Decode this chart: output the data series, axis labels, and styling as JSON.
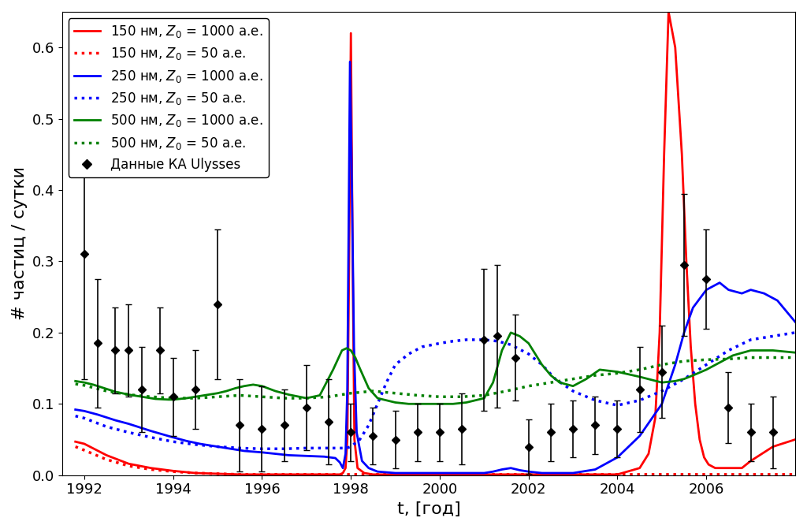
{
  "title": "",
  "xlabel": "t, [год]",
  "ylabel": "# частиц / сутки",
  "xlim": [
    1991.5,
    2008.0
  ],
  "ylim": [
    0.0,
    0.65
  ],
  "yticks": [
    0.0,
    0.1,
    0.2,
    0.3,
    0.4,
    0.5,
    0.6
  ],
  "xticks": [
    1992,
    1994,
    1996,
    1998,
    2000,
    2002,
    2004,
    2006
  ],
  "red_solid_x": [
    1991.8,
    1992.0,
    1992.5,
    1993.0,
    1993.5,
    1994.0,
    1994.5,
    1995.0,
    1995.5,
    1996.0,
    1996.5,
    1997.0,
    1997.4,
    1997.6,
    1997.75,
    1997.82,
    1997.88,
    1997.92,
    1997.96,
    1998.0,
    1998.04,
    1998.08,
    1998.15,
    1998.3,
    1998.5,
    1999.0,
    1999.5,
    2000.0,
    2000.5,
    2001.0,
    2001.5,
    2002.0,
    2002.2,
    2002.4,
    2002.6,
    2002.8,
    2003.0,
    2003.5,
    2004.0,
    2004.5,
    2004.7,
    2004.85,
    2004.95,
    2005.05,
    2005.15,
    2005.3,
    2005.45,
    2005.55,
    2005.65,
    2005.75,
    2005.85,
    2005.95,
    2006.05,
    2006.2,
    2006.4,
    2006.6,
    2006.8,
    2007.0,
    2007.5,
    2008.0
  ],
  "red_solid_y": [
    0.047,
    0.044,
    0.028,
    0.016,
    0.01,
    0.006,
    0.003,
    0.002,
    0.001,
    0.001,
    0.001,
    0.001,
    0.001,
    0.001,
    0.001,
    0.003,
    0.01,
    0.05,
    0.3,
    0.62,
    0.3,
    0.05,
    0.01,
    0.003,
    0.001,
    0.001,
    0.001,
    0.001,
    0.001,
    0.001,
    0.001,
    0.001,
    0.001,
    0.001,
    0.001,
    0.001,
    0.001,
    0.001,
    0.001,
    0.01,
    0.03,
    0.08,
    0.2,
    0.45,
    0.65,
    0.6,
    0.45,
    0.3,
    0.18,
    0.1,
    0.05,
    0.025,
    0.015,
    0.01,
    0.01,
    0.01,
    0.01,
    0.02,
    0.04,
    0.05
  ],
  "red_dotted_x": [
    1991.8,
    1992.0,
    1992.5,
    1993.0,
    1993.5,
    1994.0,
    1994.5,
    1995.0,
    1995.5,
    1996.0,
    1996.5,
    1997.0,
    1997.5,
    1998.0,
    1998.5,
    1999.0,
    1999.5,
    2000.0,
    2000.5,
    2001.0,
    2001.5,
    2002.0,
    2002.5,
    2003.0,
    2003.5,
    2004.0,
    2004.5,
    2005.0,
    2005.5,
    2006.0,
    2006.5,
    2007.0,
    2008.0
  ],
  "red_dotted_y": [
    0.04,
    0.035,
    0.022,
    0.013,
    0.008,
    0.005,
    0.003,
    0.002,
    0.001,
    0.001,
    0.001,
    0.001,
    0.001,
    0.001,
    0.001,
    0.001,
    0.001,
    0.001,
    0.001,
    0.001,
    0.001,
    0.001,
    0.001,
    0.001,
    0.001,
    0.001,
    0.001,
    0.001,
    0.001,
    0.001,
    0.001,
    0.001,
    0.001
  ],
  "blue_solid_x": [
    1991.8,
    1992.0,
    1992.3,
    1992.7,
    1993.0,
    1993.5,
    1994.0,
    1994.3,
    1994.6,
    1995.0,
    1995.3,
    1995.6,
    1996.0,
    1996.3,
    1996.6,
    1997.0,
    1997.4,
    1997.65,
    1997.75,
    1997.82,
    1997.88,
    1997.92,
    1997.95,
    1997.98,
    1998.02,
    1998.07,
    1998.13,
    1998.25,
    1998.4,
    1998.6,
    1999.0,
    1999.5,
    2000.0,
    2000.5,
    2001.0,
    2001.2,
    2001.4,
    2001.6,
    2001.8,
    2002.0,
    2002.3,
    2002.5,
    2002.7,
    2003.0,
    2003.5,
    2004.0,
    2004.5,
    2005.0,
    2005.3,
    2005.5,
    2005.7,
    2006.0,
    2006.3,
    2006.5,
    2006.8,
    2007.0,
    2007.3,
    2007.6,
    2008.0
  ],
  "blue_solid_y": [
    0.092,
    0.09,
    0.085,
    0.077,
    0.072,
    0.062,
    0.053,
    0.048,
    0.044,
    0.04,
    0.037,
    0.034,
    0.032,
    0.03,
    0.028,
    0.027,
    0.026,
    0.024,
    0.018,
    0.01,
    0.03,
    0.12,
    0.35,
    0.58,
    0.42,
    0.18,
    0.06,
    0.02,
    0.01,
    0.005,
    0.003,
    0.003,
    0.003,
    0.003,
    0.003,
    0.005,
    0.008,
    0.01,
    0.007,
    0.005,
    0.003,
    0.003,
    0.003,
    0.003,
    0.008,
    0.025,
    0.055,
    0.1,
    0.155,
    0.2,
    0.235,
    0.26,
    0.27,
    0.26,
    0.255,
    0.26,
    0.255,
    0.245,
    0.215
  ],
  "blue_dotted_x": [
    1991.8,
    1992.0,
    1992.5,
    1993.0,
    1993.5,
    1994.0,
    1994.5,
    1995.0,
    1995.5,
    1996.0,
    1996.5,
    1997.0,
    1997.3,
    1997.6,
    1997.9,
    1998.0,
    1998.2,
    1998.4,
    1998.6,
    1998.8,
    1999.0,
    1999.3,
    1999.6,
    2000.0,
    2000.3,
    2000.6,
    2001.0,
    2001.3,
    2001.6,
    2002.0,
    2002.3,
    2002.6,
    2003.0,
    2003.5,
    2004.0,
    2004.5,
    2005.0,
    2005.5,
    2006.0,
    2006.5,
    2007.0,
    2008.0
  ],
  "blue_dotted_y": [
    0.083,
    0.08,
    0.068,
    0.06,
    0.053,
    0.047,
    0.043,
    0.04,
    0.038,
    0.037,
    0.037,
    0.038,
    0.038,
    0.038,
    0.038,
    0.04,
    0.05,
    0.07,
    0.1,
    0.13,
    0.155,
    0.17,
    0.18,
    0.185,
    0.188,
    0.19,
    0.19,
    0.188,
    0.183,
    0.17,
    0.155,
    0.135,
    0.118,
    0.105,
    0.098,
    0.105,
    0.118,
    0.135,
    0.155,
    0.175,
    0.19,
    0.2
  ],
  "green_solid_x": [
    1991.8,
    1992.0,
    1992.2,
    1992.4,
    1992.7,
    1993.0,
    1993.3,
    1993.6,
    1993.9,
    1994.0,
    1994.3,
    1994.6,
    1995.0,
    1995.2,
    1995.4,
    1995.6,
    1995.8,
    1996.0,
    1996.3,
    1996.6,
    1997.0,
    1997.3,
    1997.6,
    1997.8,
    1997.9,
    1998.0,
    1998.1,
    1998.2,
    1998.4,
    1998.6,
    1999.0,
    1999.3,
    1999.6,
    2000.0,
    2000.3,
    2000.6,
    2001.0,
    2001.2,
    2001.4,
    2001.6,
    2001.8,
    2002.0,
    2002.3,
    2002.5,
    2002.7,
    2003.0,
    2003.3,
    2003.6,
    2004.0,
    2004.5,
    2005.0,
    2005.3,
    2005.5,
    2005.7,
    2006.0,
    2006.3,
    2006.6,
    2007.0,
    2007.5,
    2008.0
  ],
  "green_solid_y": [
    0.132,
    0.13,
    0.127,
    0.123,
    0.117,
    0.113,
    0.11,
    0.107,
    0.106,
    0.106,
    0.108,
    0.111,
    0.115,
    0.118,
    0.122,
    0.125,
    0.127,
    0.125,
    0.118,
    0.113,
    0.108,
    0.112,
    0.148,
    0.175,
    0.178,
    0.175,
    0.165,
    0.15,
    0.122,
    0.108,
    0.102,
    0.1,
    0.1,
    0.1,
    0.1,
    0.102,
    0.108,
    0.13,
    0.175,
    0.2,
    0.195,
    0.185,
    0.155,
    0.14,
    0.13,
    0.125,
    0.135,
    0.148,
    0.145,
    0.138,
    0.13,
    0.132,
    0.135,
    0.14,
    0.148,
    0.158,
    0.168,
    0.175,
    0.175,
    0.172
  ],
  "green_dotted_x": [
    1991.8,
    1992.0,
    1992.5,
    1993.0,
    1993.5,
    1994.0,
    1994.5,
    1995.0,
    1995.5,
    1996.0,
    1996.5,
    1997.0,
    1997.5,
    1998.0,
    1998.5,
    1999.0,
    1999.5,
    2000.0,
    2000.5,
    2001.0,
    2001.5,
    2002.0,
    2002.5,
    2003.0,
    2003.5,
    2004.0,
    2004.5,
    2005.0,
    2005.5,
    2006.0,
    2006.5,
    2007.0,
    2008.0
  ],
  "green_dotted_y": [
    0.128,
    0.126,
    0.118,
    0.113,
    0.11,
    0.108,
    0.108,
    0.11,
    0.112,
    0.11,
    0.108,
    0.108,
    0.11,
    0.115,
    0.118,
    0.115,
    0.112,
    0.11,
    0.11,
    0.112,
    0.118,
    0.125,
    0.13,
    0.135,
    0.14,
    0.143,
    0.148,
    0.155,
    0.16,
    0.162,
    0.163,
    0.165,
    0.165
  ],
  "exp_x": [
    1992.0,
    1992.3,
    1992.7,
    1993.0,
    1993.3,
    1993.7,
    1994.0,
    1994.5,
    1995.0,
    1995.5,
    1996.0,
    1996.5,
    1997.0,
    1997.5,
    1998.0,
    1998.5,
    1999.0,
    1999.5,
    2000.0,
    2000.5,
    2001.0,
    2001.3,
    2001.7,
    2002.0,
    2002.5,
    2003.0,
    2003.5,
    2004.0,
    2004.5,
    2005.0,
    2005.5,
    2006.0,
    2006.5,
    2007.0,
    2007.5
  ],
  "exp_y": [
    0.31,
    0.185,
    0.175,
    0.175,
    0.12,
    0.175,
    0.11,
    0.12,
    0.24,
    0.07,
    0.065,
    0.07,
    0.095,
    0.075,
    0.06,
    0.055,
    0.05,
    0.06,
    0.06,
    0.065,
    0.19,
    0.195,
    0.165,
    0.04,
    0.06,
    0.065,
    0.07,
    0.065,
    0.12,
    0.145,
    0.295,
    0.275,
    0.095,
    0.06,
    0.06
  ],
  "exp_yerr": [
    0.175,
    0.09,
    0.06,
    0.065,
    0.06,
    0.06,
    0.055,
    0.055,
    0.105,
    0.065,
    0.06,
    0.05,
    0.06,
    0.06,
    0.04,
    0.04,
    0.04,
    0.04,
    0.04,
    0.05,
    0.1,
    0.1,
    0.06,
    0.038,
    0.04,
    0.04,
    0.04,
    0.04,
    0.06,
    0.065,
    0.1,
    0.07,
    0.05,
    0.04,
    0.05
  ],
  "legend_entries": [
    {
      "label": "150 нм, $Z_0$ = 1000 а.е.",
      "color": "red",
      "linestyle": "solid"
    },
    {
      "label": "150 нм, $Z_0$ = 50 а.е.",
      "color": "red",
      "linestyle": "dotted"
    },
    {
      "label": "250 нм, $Z_0$ = 1000 а.е.",
      "color": "blue",
      "linestyle": "solid"
    },
    {
      "label": "250 нм, $Z_0$ = 50 а.е.",
      "color": "blue",
      "linestyle": "dotted"
    },
    {
      "label": "500 нм, $Z_0$ = 1000 а.е.",
      "color": "green",
      "linestyle": "solid"
    },
    {
      "label": "500 нм, $Z_0$ = 50 а.е.",
      "color": "green",
      "linestyle": "dotted"
    },
    {
      "label": "Данные КА Ulysses",
      "color": "black",
      "linestyle": "none",
      "marker": "D"
    }
  ],
  "line_width": 2.0,
  "fontsize_labels": 16,
  "fontsize_ticks": 13,
  "fontsize_legend": 12
}
